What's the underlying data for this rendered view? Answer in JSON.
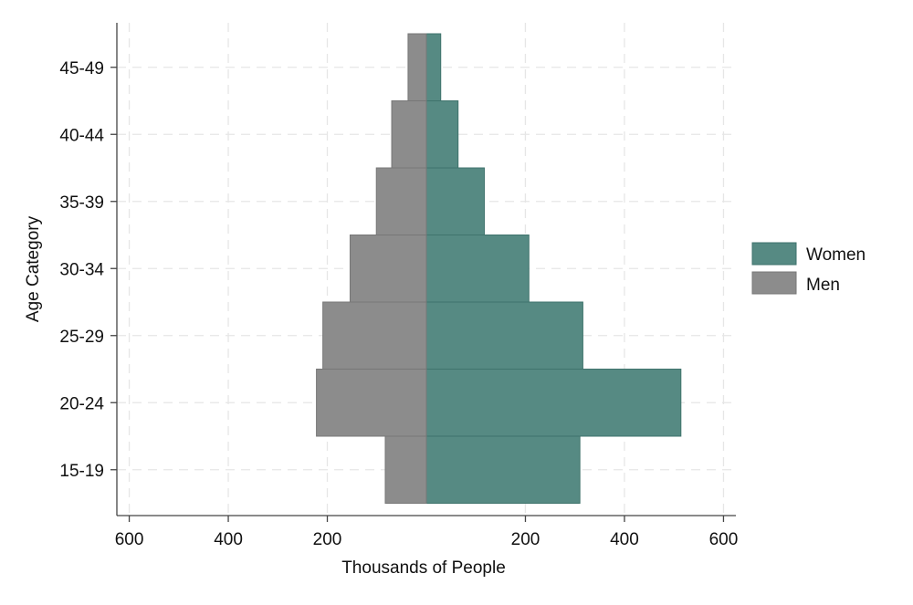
{
  "chart_data": {
    "type": "bar",
    "orientation": "horizontal",
    "layout": "population-pyramid",
    "title": "",
    "xlabel": "Thousands of People",
    "ylabel": "Age Category",
    "categories": [
      "15-19",
      "20-24",
      "25-29",
      "30-34",
      "35-39",
      "40-44",
      "45-49"
    ],
    "series": [
      {
        "name": "Women",
        "side": "right",
        "color": "#568a83",
        "values": [
          310,
          514,
          316,
          207,
          117,
          64,
          29
        ]
      },
      {
        "name": "Men",
        "side": "left",
        "color": "#8c8c8c",
        "values": [
          83,
          222,
          209,
          154,
          101,
          70,
          37
        ]
      }
    ],
    "xlim": [
      -625,
      625
    ],
    "xticks": [
      -600,
      -400,
      -200,
      200,
      400,
      600
    ],
    "xtick_labels": [
      "600",
      "400",
      "200",
      "200",
      "400",
      "600"
    ],
    "grid": true,
    "legend": {
      "placement": "right",
      "entries": [
        "Women",
        "Men"
      ]
    }
  }
}
